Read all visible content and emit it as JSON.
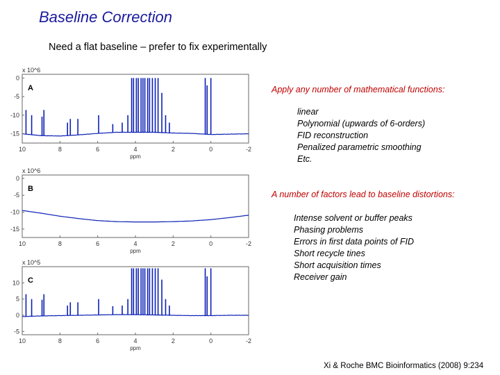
{
  "slide": {
    "title": "Baseline Correction",
    "subtitle": "Need a flat baseline – prefer to fix experimentally",
    "functions_heading": "Apply any number of mathematical functions:",
    "functions": [
      "linear",
      "Polynomial (upwards of 6-orders)",
      "FID reconstruction",
      "Penalized parametric smoothing",
      "Etc."
    ],
    "factors_heading": "A number of factors lead to baseline distortions:",
    "factors": [
      "Intense solvent or buffer peaks",
      "Phasing problems",
      "Errors in first data points of FID",
      "Short recycle tines",
      "Short acquisition times",
      "Receiver gain"
    ],
    "citation": "Xi & Roche BMC Bioinformatics (2008) 9:234"
  },
  "colors": {
    "title": "#1a1a9e",
    "red_text": "#c00000",
    "trace": "#0a1fb4"
  },
  "chart_data": [
    {
      "type": "line",
      "panel": "A",
      "scale_label": "x 10^6",
      "xlabel": "ppm",
      "x_ticks": [
        "10",
        "8",
        "6",
        "4",
        "2",
        "0",
        "-2"
      ],
      "y_ticks": [
        "0",
        "-5",
        "-10",
        "-15"
      ],
      "xlim": [
        10,
        -2
      ],
      "ylim": [
        -17.5,
        1
      ],
      "baseline": [
        [
          10,
          -15.0
        ],
        [
          9,
          -15.5
        ],
        [
          8,
          -15.6
        ],
        [
          7,
          -15.3
        ],
        [
          6,
          -14.9
        ],
        [
          5,
          -14.6
        ],
        [
          4,
          -14.6
        ],
        [
          3,
          -14.6
        ],
        [
          2,
          -14.8
        ],
        [
          1,
          -14.9
        ],
        [
          0,
          -15.2
        ],
        [
          -1,
          -15.1
        ],
        [
          -2,
          -15.0
        ]
      ],
      "peaks": [
        [
          9.8,
          -8.6
        ],
        [
          9.5,
          -10.0
        ],
        [
          8.95,
          -10.4
        ],
        [
          8.85,
          -8.6
        ],
        [
          7.6,
          -12.0
        ],
        [
          7.45,
          -11.0
        ],
        [
          7.05,
          -11.0
        ],
        [
          5.95,
          -10.0
        ],
        [
          5.2,
          -12.4
        ],
        [
          4.7,
          -12.0
        ],
        [
          4.4,
          -10.0
        ],
        [
          4.2,
          0
        ],
        [
          4.1,
          0
        ],
        [
          3.95,
          0
        ],
        [
          3.85,
          0
        ],
        [
          3.7,
          0
        ],
        [
          3.6,
          0
        ],
        [
          3.5,
          0
        ],
        [
          3.35,
          0
        ],
        [
          3.25,
          0
        ],
        [
          3.1,
          0
        ],
        [
          2.95,
          0
        ],
        [
          2.8,
          0
        ],
        [
          2.6,
          -4.0
        ],
        [
          2.4,
          -10.0
        ],
        [
          2.2,
          -12.0
        ],
        [
          0.3,
          0
        ],
        [
          0.2,
          -2.0
        ],
        [
          0.0,
          0
        ]
      ]
    },
    {
      "type": "line",
      "panel": "B",
      "scale_label": "x 10^6",
      "xlabel": "ppm",
      "x_ticks": [
        "10",
        "8",
        "6",
        "4",
        "2",
        "0",
        "-2"
      ],
      "y_ticks": [
        "0",
        "-5",
        "-10",
        "-15"
      ],
      "xlim": [
        10,
        -2
      ],
      "ylim": [
        -17.5,
        1
      ],
      "baseline": [
        [
          10,
          -9.5
        ],
        [
          9,
          -10.3
        ],
        [
          8,
          -11.2
        ],
        [
          7,
          -11.9
        ],
        [
          6,
          -12.5
        ],
        [
          5,
          -12.8
        ],
        [
          4,
          -12.9
        ],
        [
          3,
          -12.9
        ],
        [
          2,
          -12.8
        ],
        [
          1,
          -12.6
        ],
        [
          0,
          -12.2
        ],
        [
          -1,
          -11.6
        ],
        [
          -2,
          -10.9
        ]
      ],
      "peaks": []
    },
    {
      "type": "line",
      "panel": "C",
      "scale_label": "x 10^5",
      "xlabel": "ppm",
      "x_ticks": [
        "10",
        "8",
        "6",
        "4",
        "2",
        "0",
        "-2"
      ],
      "y_ticks": [
        "10",
        "5",
        "0",
        "-5"
      ],
      "xlim": [
        10,
        -2
      ],
      "ylim": [
        -6,
        15
      ],
      "baseline": [
        [
          10,
          -0.4
        ],
        [
          9,
          -0.2
        ],
        [
          8,
          -0.1
        ],
        [
          7,
          0.0
        ],
        [
          6,
          0.1
        ],
        [
          5,
          0.2
        ],
        [
          4,
          0.2
        ],
        [
          3,
          0.1
        ],
        [
          2,
          0.0
        ],
        [
          1,
          -0.1
        ],
        [
          0,
          -0.1
        ],
        [
          -1,
          0.0
        ],
        [
          -2,
          0.0
        ]
      ],
      "peaks": [
        [
          9.8,
          6.5
        ],
        [
          9.5,
          5.0
        ],
        [
          8.95,
          4.8
        ],
        [
          8.85,
          6.5
        ],
        [
          7.6,
          3.0
        ],
        [
          7.45,
          4.0
        ],
        [
          7.05,
          4.0
        ],
        [
          5.95,
          5.0
        ],
        [
          5.2,
          2.8
        ],
        [
          4.7,
          3.0
        ],
        [
          4.4,
          5.0
        ],
        [
          4.2,
          14.5
        ],
        [
          4.1,
          14.5
        ],
        [
          3.95,
          14.5
        ],
        [
          3.85,
          14.5
        ],
        [
          3.7,
          14.5
        ],
        [
          3.6,
          14.5
        ],
        [
          3.5,
          14.5
        ],
        [
          3.35,
          14.5
        ],
        [
          3.25,
          14.5
        ],
        [
          3.1,
          14.5
        ],
        [
          2.95,
          14.5
        ],
        [
          2.8,
          14.5
        ],
        [
          2.6,
          11.0
        ],
        [
          2.4,
          5.0
        ],
        [
          2.2,
          3.0
        ],
        [
          0.3,
          14.5
        ],
        [
          0.2,
          12.0
        ],
        [
          0.0,
          14.5
        ]
      ]
    }
  ]
}
